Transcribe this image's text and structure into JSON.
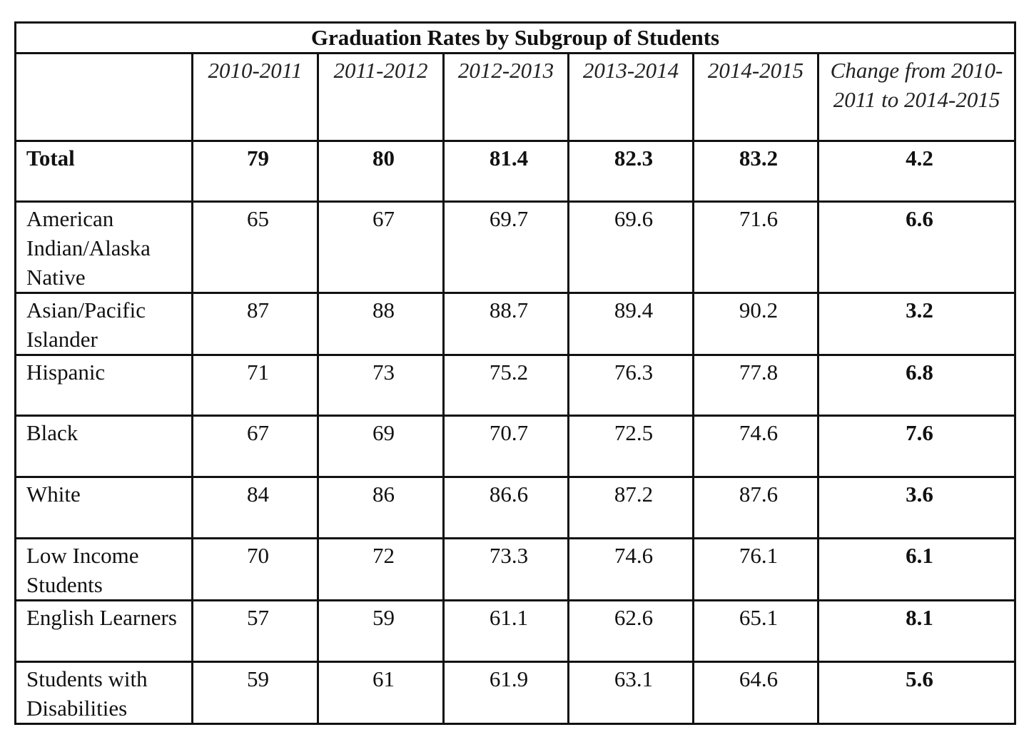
{
  "table": {
    "title": "Graduation Rates by Subgroup of Students",
    "header": [
      "2010-2011",
      "2011-2012",
      "2012-2013",
      "2013-2014",
      "2014-2015",
      "Change from 2010-2011 to 2014-2015"
    ],
    "rows": [
      {
        "label": "Total",
        "values": [
          79,
          80,
          81.4,
          82.3,
          83.2
        ],
        "change": 4.2
      },
      {
        "label": "American Indian/Alaska Native",
        "values": [
          65,
          67,
          69.7,
          69.6,
          71.6
        ],
        "change": 6.6
      },
      {
        "label": "Asian/Pacific Islander",
        "values": [
          87,
          88,
          88.7,
          89.4,
          90.2
        ],
        "change": 3.2
      },
      {
        "label": "Hispanic",
        "values": [
          71,
          73,
          75.2,
          76.3,
          77.8
        ],
        "change": 6.8
      },
      {
        "label": "Black",
        "values": [
          67,
          69,
          70.7,
          72.5,
          74.6
        ],
        "change": 7.6
      },
      {
        "label": "White",
        "values": [
          84,
          86,
          86.6,
          87.2,
          87.6
        ],
        "change": 3.6
      },
      {
        "label": "Low Income Students",
        "values": [
          70,
          72,
          73.3,
          74.6,
          76.1
        ],
        "change": 6.1
      },
      {
        "label": "English Learners",
        "values": [
          57,
          59,
          61.1,
          62.6,
          65.1
        ],
        "change": 8.1
      },
      {
        "label": "Students with Disabilities",
        "values": [
          59,
          61,
          61.9,
          63.1,
          64.6
        ],
        "change": 5.6
      }
    ]
  }
}
